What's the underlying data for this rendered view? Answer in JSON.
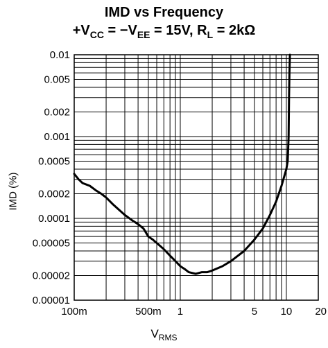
{
  "chart_data": {
    "type": "line",
    "title": "IMD vs Frequency",
    "subtitle_parts": {
      "a": "+V",
      "a_sub": "CC",
      "b": " = −V",
      "b_sub": "EE",
      "c": " = 15V, R",
      "c_sub": "L",
      "d": " = 2kΩ"
    },
    "xlabel": "V",
    "xlabel_sub": "RMS",
    "ylabel": "IMD (%)",
    "x_scale": "log",
    "y_scale": "log",
    "xlim": [
      0.1,
      20
    ],
    "ylim": [
      1e-05,
      0.01
    ],
    "grid": true,
    "x_ticks": [
      {
        "value": 0.1,
        "label": "100m"
      },
      {
        "value": 0.5,
        "label": "500m"
      },
      {
        "value": 1,
        "label": "1"
      },
      {
        "value": 5,
        "label": "5"
      },
      {
        "value": 10,
        "label": "10"
      },
      {
        "value": 20,
        "label": "20"
      }
    ],
    "y_ticks": [
      {
        "value": 0.01,
        "label": "0.01"
      },
      {
        "value": 0.005,
        "label": "0.005"
      },
      {
        "value": 0.002,
        "label": "0.002"
      },
      {
        "value": 0.001,
        "label": "0.001"
      },
      {
        "value": 0.0005,
        "label": "0.0005"
      },
      {
        "value": 0.0002,
        "label": "0.0002"
      },
      {
        "value": 0.0001,
        "label": "0.0001"
      },
      {
        "value": 5e-05,
        "label": "0.00005"
      },
      {
        "value": 2e-05,
        "label": "0.00002"
      },
      {
        "value": 1e-05,
        "label": "0.00001"
      }
    ],
    "series": [
      {
        "x": [
          0.1,
          0.11,
          0.12,
          0.14,
          0.16,
          0.18,
          0.2,
          0.23,
          0.26,
          0.3,
          0.35,
          0.4,
          0.45,
          0.5,
          0.55,
          0.6,
          0.7,
          0.8,
          0.9,
          1.0,
          1.1,
          1.2,
          1.4,
          1.6,
          1.8,
          2.0,
          2.5,
          3.0,
          4.0,
          5.0,
          6.0,
          7.0,
          8.0,
          9.0,
          10.0,
          10.3,
          10.5,
          10.6,
          10.7,
          10.8
        ],
        "y": [
          0.00035,
          0.0003,
          0.00027,
          0.00025,
          0.00022,
          0.0002,
          0.00018,
          0.00015,
          0.00013,
          0.00011,
          9.5e-05,
          8.5e-05,
          7.5e-05,
          6e-05,
          5.5e-05,
          5e-05,
          4.2e-05,
          3.5e-05,
          3e-05,
          2.6e-05,
          2.4e-05,
          2.2e-05,
          2.1e-05,
          2.2e-05,
          2.2e-05,
          2.3e-05,
          2.6e-05,
          3e-05,
          4e-05,
          5.5e-05,
          7.5e-05,
          0.00011,
          0.00016,
          0.00025,
          0.0004,
          0.0005,
          0.001,
          0.003,
          0.006,
          0.01
        ]
      }
    ]
  }
}
